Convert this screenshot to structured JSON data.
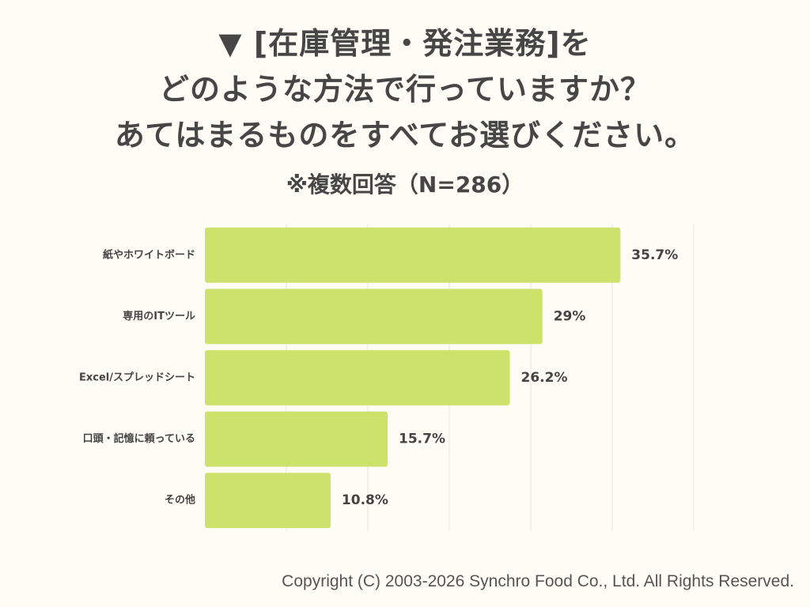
{
  "title": {
    "line1": "▼ [在庫管理・発注業務]を",
    "line2": "どのような方法で行っていますか？",
    "line3": "あてはまるものをすべてお選びください。"
  },
  "subtitle": "※複数回答（N=286）",
  "copyright": "Copyright (C) 2003-2026  Synchro Food Co., Ltd. All Rights Reserved.",
  "colors": {
    "bar": "#cde26b",
    "grid": "#e6e6e0",
    "label": "#444444",
    "value": "#444444"
  },
  "chart_data": {
    "type": "bar",
    "orientation": "horizontal",
    "title": "▼ [在庫管理・発注業務]をどのような方法で行っていますか？あてはまるものをすべてお選びください。",
    "subtitle": "※複数回答（N=286）",
    "categories": [
      "紙やホワイトボード",
      "専用のITツール",
      "Excel/スプレッドシート",
      "口頭・記憶に頼っている",
      "その他"
    ],
    "values": [
      35.7,
      29,
      26.2,
      15.7,
      10.8
    ],
    "value_labels": [
      "35.7%",
      "29%",
      "26.2%",
      "15.7%",
      "10.8%"
    ],
    "unit": "%",
    "xlim": [
      0,
      42
    ],
    "grid": true,
    "xlabel": "",
    "ylabel": ""
  }
}
